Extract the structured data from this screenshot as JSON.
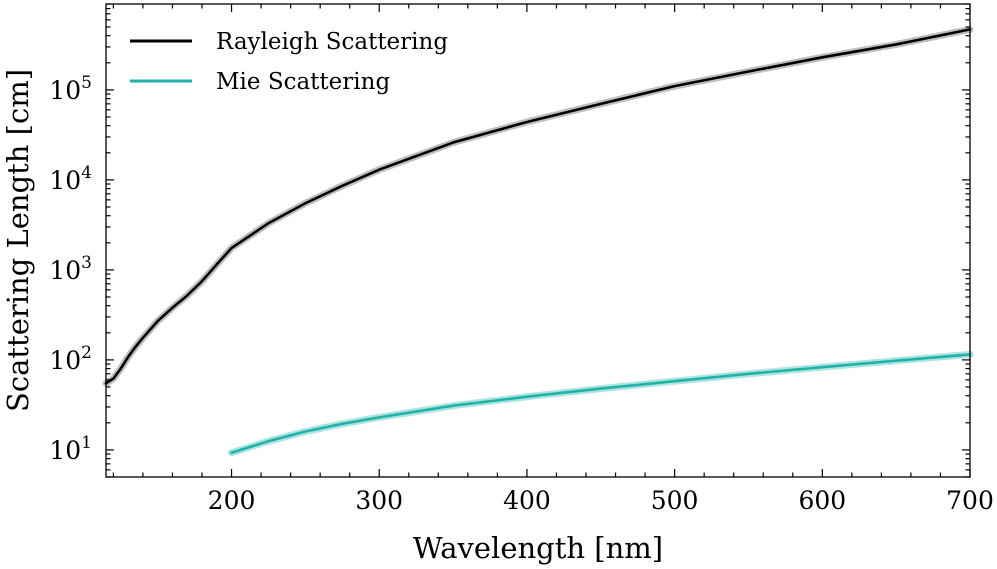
{
  "chart_data": {
    "type": "line",
    "title": "",
    "xlabel": "Wavelength [nm]",
    "ylabel": "Scattering Length [cm]",
    "xlim": [
      115,
      700
    ],
    "ylim": [
      5,
      900000
    ],
    "yscale": "log",
    "grid": false,
    "legend_position": "top-left",
    "x_ticks": [
      {
        "value": 200,
        "label": "200"
      },
      {
        "value": 300,
        "label": "300"
      },
      {
        "value": 400,
        "label": "400"
      },
      {
        "value": 500,
        "label": "500"
      },
      {
        "value": 600,
        "label": "600"
      },
      {
        "value": 700,
        "label": "700"
      }
    ],
    "y_ticks": [
      {
        "value": 10,
        "base": "10",
        "exp": "1"
      },
      {
        "value": 100,
        "base": "10",
        "exp": "2"
      },
      {
        "value": 1000,
        "base": "10",
        "exp": "3"
      },
      {
        "value": 10000,
        "base": "10",
        "exp": "4"
      },
      {
        "value": 100000,
        "base": "10",
        "exp": "5"
      }
    ],
    "series": [
      {
        "name": "Rayleigh Scattering",
        "color": "#000000",
        "band_color": "#b3b3b3",
        "points": [
          [
            115,
            55
          ],
          [
            120,
            62
          ],
          [
            125,
            80
          ],
          [
            130,
            108
          ],
          [
            135,
            140
          ],
          [
            140,
            176
          ],
          [
            150,
            270
          ],
          [
            160,
            380
          ],
          [
            170,
            520
          ],
          [
            180,
            750
          ],
          [
            190,
            1150
          ],
          [
            200,
            1750
          ],
          [
            225,
            3300
          ],
          [
            250,
            5500
          ],
          [
            275,
            8600
          ],
          [
            300,
            13000
          ],
          [
            350,
            26000
          ],
          [
            400,
            44000
          ],
          [
            450,
            70000
          ],
          [
            500,
            110000
          ],
          [
            550,
            160000
          ],
          [
            600,
            230000
          ],
          [
            650,
            320000
          ],
          [
            700,
            470000
          ]
        ]
      },
      {
        "name": "Mie Scattering",
        "color": "#20b2aa",
        "band_color": "#9ee0d9",
        "points": [
          [
            200,
            9.3
          ],
          [
            225,
            12.5
          ],
          [
            250,
            16
          ],
          [
            275,
            19.5
          ],
          [
            300,
            23
          ],
          [
            350,
            31
          ],
          [
            400,
            39
          ],
          [
            450,
            48
          ],
          [
            500,
            58
          ],
          [
            550,
            70
          ],
          [
            600,
            83
          ],
          [
            650,
            98
          ],
          [
            700,
            115
          ]
        ]
      }
    ]
  }
}
